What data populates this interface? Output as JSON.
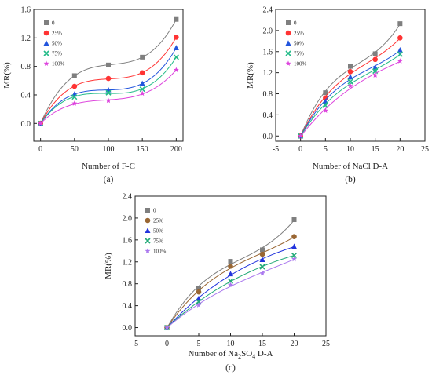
{
  "chart_data": [
    {
      "type": "scatter",
      "panel_label": "(a)",
      "xlabel": "Number of F-C",
      "ylabel": "MR(%)",
      "xlim": [
        -10,
        210
      ],
      "ylim": [
        -0.25,
        1.6
      ],
      "xticks": [
        0,
        50,
        100,
        150,
        200
      ],
      "yticks": [
        0.0,
        0.4,
        0.8,
        1.2,
        1.6
      ],
      "ytick_labels": [
        "0.0",
        "0.4",
        "0.8",
        "1.2",
        "1.6"
      ],
      "legend_position": "top-left",
      "x": [
        0,
        50,
        100,
        150,
        200
      ],
      "series": [
        {
          "name": "0",
          "marker": "square",
          "color": "#7f7f7f",
          "values": [
            0,
            0.67,
            0.82,
            0.93,
            1.46
          ]
        },
        {
          "name": "25%",
          "marker": "circle",
          "color": "#ff3333",
          "values": [
            0,
            0.52,
            0.63,
            0.71,
            1.21
          ]
        },
        {
          "name": "50%",
          "marker": "triangle",
          "color": "#2255dd",
          "values": [
            0,
            0.41,
            0.47,
            0.56,
            1.06
          ]
        },
        {
          "name": "75%",
          "marker": "x",
          "color": "#22bb88",
          "values": [
            0,
            0.37,
            0.43,
            0.48,
            0.93
          ]
        },
        {
          "name": "100%",
          "marker": "star",
          "color": "#dd44dd",
          "values": [
            0,
            0.28,
            0.32,
            0.42,
            0.75
          ]
        }
      ]
    },
    {
      "type": "scatter",
      "panel_label": "(b)",
      "xlabel": "Number of NaCl D-A",
      "ylabel": "MR(%)",
      "xlim": [
        -5,
        25
      ],
      "ylim": [
        -0.1,
        2.4
      ],
      "xticks": [
        -5,
        0,
        5,
        10,
        15,
        20,
        25
      ],
      "yticks": [
        0.0,
        0.4,
        0.8,
        1.2,
        1.6,
        2.0,
        2.4
      ],
      "ytick_labels": [
        "0.0",
        "0.4",
        "0.8",
        "1.2",
        "1.6",
        "2.0",
        "2.4"
      ],
      "legend_position": "top-left",
      "x": [
        0,
        5,
        10,
        15,
        20
      ],
      "series": [
        {
          "name": "0",
          "marker": "square",
          "color": "#7f7f7f",
          "values": [
            0,
            0.82,
            1.32,
            1.56,
            2.13
          ]
        },
        {
          "name": "25%",
          "marker": "circle",
          "color": "#ff3333",
          "values": [
            0,
            0.72,
            1.22,
            1.45,
            1.86
          ]
        },
        {
          "name": "50%",
          "marker": "triangle",
          "color": "#2255dd",
          "values": [
            0,
            0.65,
            1.12,
            1.3,
            1.63
          ]
        },
        {
          "name": "75%",
          "marker": "x",
          "color": "#22bb88",
          "values": [
            0,
            0.58,
            1.03,
            1.23,
            1.55
          ]
        },
        {
          "name": "100%",
          "marker": "star",
          "color": "#dd44dd",
          "values": [
            0,
            0.48,
            0.95,
            1.15,
            1.42
          ]
        }
      ]
    },
    {
      "type": "scatter",
      "panel_label": "(c)",
      "xlabel_prefix": "Number of Na",
      "xlabel_sub1": "2",
      "xlabel_mid": "SO",
      "xlabel_sub2": "4",
      "xlabel_suffix": " D-A",
      "ylabel": "MR(%)",
      "xlim": [
        -5,
        25
      ],
      "ylim": [
        -0.15,
        2.4
      ],
      "xticks": [
        -5,
        0,
        5,
        10,
        15,
        20,
        25
      ],
      "yticks": [
        0.0,
        0.4,
        0.8,
        1.2,
        1.6,
        2.0,
        2.4
      ],
      "ytick_labels": [
        "0.0",
        "0.4",
        "0.8",
        "1.2",
        "1.6",
        "2.0",
        "2.4"
      ],
      "legend_position": "top-left",
      "x": [
        0,
        5,
        10,
        15,
        20
      ],
      "series": [
        {
          "name": "0",
          "marker": "square",
          "color": "#7f7f7f",
          "values": [
            0,
            0.72,
            1.21,
            1.42,
            1.97
          ]
        },
        {
          "name": "25%",
          "marker": "circle",
          "color": "#996633",
          "values": [
            0,
            0.65,
            1.12,
            1.34,
            1.66
          ]
        },
        {
          "name": "50%",
          "marker": "triangle",
          "color": "#2233dd",
          "values": [
            0,
            0.53,
            0.98,
            1.24,
            1.48
          ]
        },
        {
          "name": "75%",
          "marker": "x",
          "color": "#22aa77",
          "values": [
            0,
            0.47,
            0.85,
            1.11,
            1.32
          ]
        },
        {
          "name": "100%",
          "marker": "star",
          "color": "#aa77ee",
          "values": [
            0,
            0.41,
            0.78,
            0.99,
            1.25
          ]
        }
      ]
    }
  ]
}
